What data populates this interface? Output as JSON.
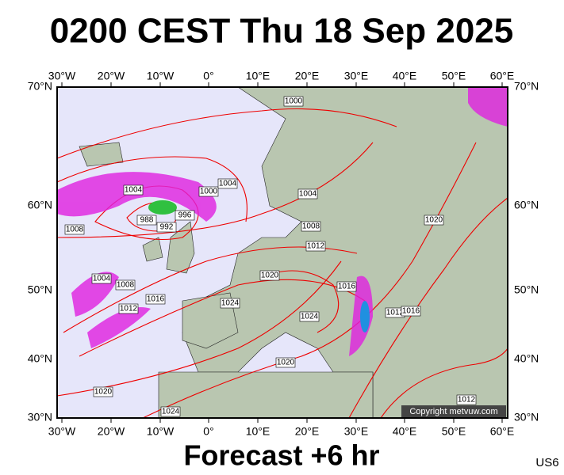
{
  "title": "0200 CEST Thu 18 Sep 2025",
  "map": {
    "lon_labels": [
      "30°W",
      "20°W",
      "10°W",
      "0°",
      "10°E",
      "20°E",
      "30°E",
      "40°E",
      "50°E",
      "60°E"
    ],
    "lat_labels": [
      "70°N",
      "60°N",
      "50°N",
      "40°N",
      "30°N"
    ],
    "isobar_labels": [
      "1000",
      "1004",
      "1000",
      "1004",
      "988",
      "992",
      "996",
      "1004",
      "1008",
      "1008",
      "1012",
      "1020",
      "1020",
      "1016",
      "1004",
      "1008",
      "1012",
      "1016",
      "1024",
      "1024",
      "1012",
      "1016",
      "1020",
      "1020",
      "1024",
      "1012"
    ],
    "copyright": "Copyright metvuw.com"
  },
  "footer": "Forecast +6 hr",
  "code": "US6"
}
